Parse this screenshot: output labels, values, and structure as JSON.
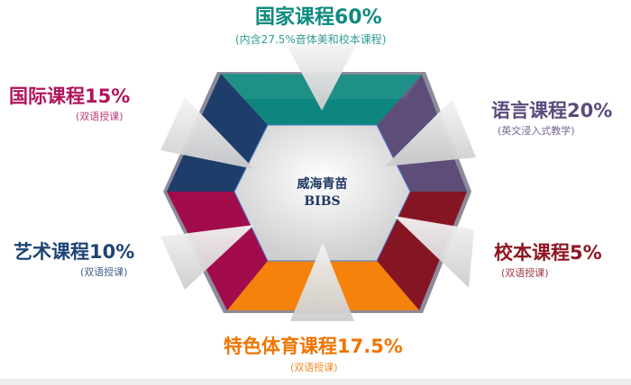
{
  "center": {
    "line1": "威海青苗",
    "line2": "BIBS"
  },
  "segments": [
    {
      "id": "top",
      "title": "国家课程60%",
      "note": "(内含27.5%音体美和校本课程)",
      "color": "#0f8a80"
    },
    {
      "id": "upper-left",
      "title": "国际课程15%",
      "note": "(双语授课)",
      "color": "#b0145a"
    },
    {
      "id": "upper-right",
      "title": "语言课程20%",
      "note": "(英文浸入式教学)",
      "color": "#5b4a7c"
    },
    {
      "id": "lower-left",
      "title": "艺术课程10%",
      "note": "(双语授课)",
      "color": "#1d4473"
    },
    {
      "id": "lower-right",
      "title": "校本课程5%",
      "note": "(双语授课)",
      "color": "#8e1620"
    },
    {
      "id": "bottom",
      "title": "特色体育课程17.5%",
      "note": "(双语授课)",
      "color": "#f07400"
    }
  ],
  "fills": {
    "top": "#0d877d",
    "upper_right": "#5d4d78",
    "lower_right": "#861523",
    "bottom": "#f5820a",
    "lower_left": "#a30c4c",
    "upper_left": "#1f3d6a"
  }
}
